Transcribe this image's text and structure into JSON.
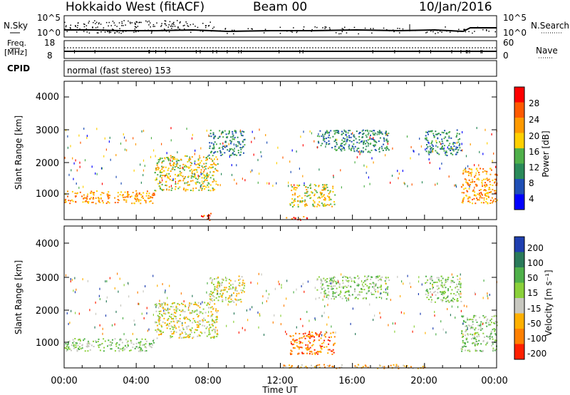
{
  "header": {
    "title": "Hokkaido West (fitACF)",
    "beam": "Beam 00",
    "date": "10/Jan/2016"
  },
  "nsky_panel": {
    "left_label": "N.Sky",
    "left_ticks": [
      "10^5",
      "10^0"
    ],
    "right_ticks": [
      "10^5",
      "10^0"
    ],
    "right_label": "N.Search"
  },
  "freq_panel": {
    "label_line1": "Freq.",
    "label_line2": "[MHz]",
    "left_ticks": [
      "18",
      "8"
    ],
    "right_ticks": [
      "60",
      "0"
    ],
    "right_label": "Nave"
  },
  "cpid_panel": {
    "label": "CPID",
    "mode_text": "normal (fast stereo) 153"
  },
  "power_panel": {
    "ylabel": "Slant Range [km]",
    "yticks": [
      "4000",
      "3000",
      "2000",
      "1000"
    ],
    "colorbar_label": "Power [dB]",
    "colorbar_ticks": [
      "28",
      "24",
      "20",
      "16",
      "12",
      "8",
      "4"
    ],
    "colors": [
      "#0000ff",
      "#1f4fb5",
      "#2a8a5a",
      "#4fb04a",
      "#ffd000",
      "#ff9a00",
      "#ff5a00",
      "#ff0000"
    ]
  },
  "velocity_panel": {
    "ylabel": "Slant Range [km]",
    "yticks": [
      "4000",
      "3000",
      "2000",
      "1000"
    ],
    "colorbar_label": "Velocity [m s⁻¹]",
    "colorbar_ticks": [
      "200",
      "100",
      "50",
      "15",
      "-15",
      "-50",
      "-100",
      "-200"
    ],
    "colors": [
      "#1f3fb0",
      "#2a7a5a",
      "#4fb04a",
      "#8ad03a",
      "#c8c8c0",
      "#ffb000",
      "#ff8000",
      "#ff2000"
    ]
  },
  "x_axis": {
    "ticks": [
      "00:00",
      "04:00",
      "08:00",
      "12:00",
      "16:00",
      "20:00",
      "00:00"
    ],
    "label": "Time UT"
  },
  "chart_data": [
    {
      "type": "heatmap",
      "title": "Power [dB]",
      "xlabel": "Time UT",
      "ylabel": "Slant Range [km]",
      "xlim": [
        "00:00",
        "24:00"
      ],
      "ylim": [
        180,
        4500
      ],
      "clim": [
        0,
        30
      ],
      "regions": [
        {
          "t0": 0.0,
          "t1": 5.0,
          "r0": 700,
          "r1": 1100,
          "value": 22
        },
        {
          "t0": 5.0,
          "t1": 8.5,
          "r0": 1100,
          "r1": 2200,
          "value": 16
        },
        {
          "t0": 8.0,
          "t1": 10.0,
          "r0": 2200,
          "r1": 3000,
          "value": 10
        },
        {
          "t0": 12.5,
          "t1": 15.0,
          "r0": 600,
          "r1": 1300,
          "value": 18
        },
        {
          "t0": 14.0,
          "t1": 18.0,
          "r0": 2300,
          "r1": 3000,
          "value": 8
        },
        {
          "t0": 20.0,
          "t1": 22.0,
          "r0": 2200,
          "r1": 3000,
          "value": 10
        },
        {
          "t0": 22.0,
          "t1": 24.0,
          "r0": 700,
          "r1": 1800,
          "value": 20
        },
        {
          "t0": 7.5,
          "t1": 8.2,
          "r0": 180,
          "r1": 400,
          "value": 26
        },
        {
          "t0": 12.3,
          "t1": 13.5,
          "r0": 180,
          "r1": 300,
          "value": 24
        }
      ]
    },
    {
      "type": "heatmap",
      "title": "Velocity [m s⁻¹]",
      "xlabel": "Time UT",
      "ylabel": "Slant Range [km]",
      "xlim": [
        "00:00",
        "24:00"
      ],
      "ylim": [
        180,
        4500
      ],
      "clim": [
        -200,
        200
      ],
      "regions": [
        {
          "t0": 0.0,
          "t1": 5.0,
          "r0": 700,
          "r1": 1100,
          "value": 0
        },
        {
          "t0": 5.0,
          "t1": 8.5,
          "r0": 1100,
          "r1": 2200,
          "value": -20
        },
        {
          "t0": 8.0,
          "t1": 10.0,
          "r0": 2200,
          "r1": 3000,
          "value": -30
        },
        {
          "t0": 12.5,
          "t1": 15.0,
          "r0": 600,
          "r1": 1300,
          "value": -90
        },
        {
          "t0": 14.0,
          "t1": 18.0,
          "r0": 2300,
          "r1": 3000,
          "value": 10
        },
        {
          "t0": 20.0,
          "t1": 22.0,
          "r0": 2200,
          "r1": 3000,
          "value": 20
        },
        {
          "t0": 22.0,
          "t1": 24.0,
          "r0": 700,
          "r1": 1800,
          "value": 0
        },
        {
          "t0": 12.0,
          "t1": 20.0,
          "r0": 180,
          "r1": 300,
          "value": -60
        }
      ]
    }
  ]
}
